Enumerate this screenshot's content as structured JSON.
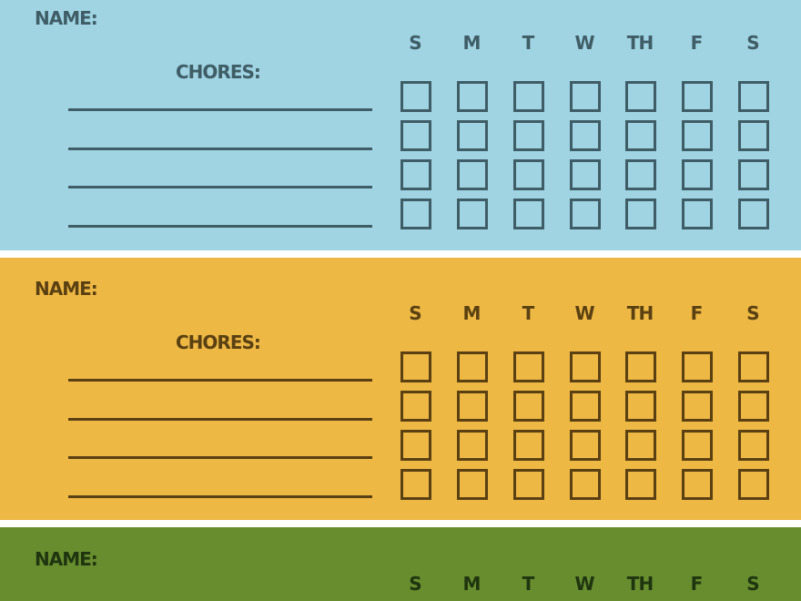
{
  "labels": {
    "name": "NAME:",
    "chores": "CHORES:"
  },
  "days": [
    "S",
    "M",
    "T",
    "W",
    "TH",
    "F",
    "S"
  ],
  "chore_rows": 4,
  "panels": [
    {
      "background": "#a0d4e3",
      "ink": "#3f5d66"
    },
    {
      "background": "#edb844",
      "ink": "#5a4012"
    },
    {
      "background": "#678d2f",
      "ink": "#1f350f"
    }
  ]
}
